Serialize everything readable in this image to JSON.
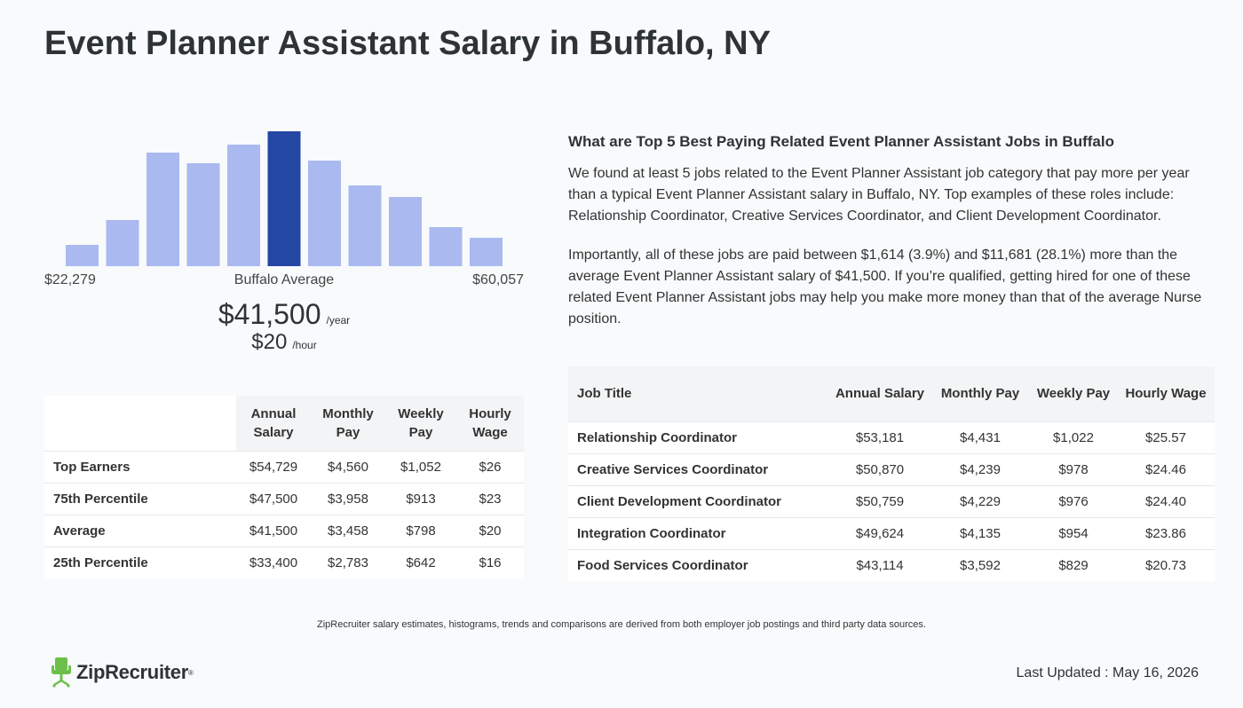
{
  "page_title": "Event Planner Assistant Salary in Buffalo, NY",
  "histogram": {
    "min_label": "$22,279",
    "max_label": "$60,057",
    "center_label": "Buffalo Average",
    "bar_color": "#aab9f0",
    "highlight_color": "#2447a4",
    "bar_heights": [
      0.16,
      0.34,
      0.84,
      0.76,
      0.9,
      1.0,
      0.78,
      0.6,
      0.51,
      0.29,
      0.21
    ],
    "highlight_index": 5
  },
  "average": {
    "annual": "$41,500",
    "annual_unit": "/year",
    "hourly": "$20",
    "hourly_unit": "/hour"
  },
  "percentile_table": {
    "headers": [
      "",
      "Annual Salary",
      "Monthly Pay",
      "Weekly Pay",
      "Hourly Wage"
    ],
    "rows": [
      [
        "Top Earners",
        "$54,729",
        "$4,560",
        "$1,052",
        "$26"
      ],
      [
        "75th Percentile",
        "$47,500",
        "$3,958",
        "$913",
        "$23"
      ],
      [
        "Average",
        "$41,500",
        "$3,458",
        "$798",
        "$20"
      ],
      [
        "25th Percentile",
        "$33,400",
        "$2,783",
        "$642",
        "$16"
      ]
    ]
  },
  "related": {
    "heading": "What are Top 5 Best Paying Related Event Planner Assistant Jobs in Buffalo",
    "paragraph1": "We found at least 5 jobs related to the Event Planner Assistant job category that pay more per year than a typical Event Planner Assistant salary in Buffalo, NY. Top examples of these roles include: Relationship Coordinator, Creative Services Coordinator, and Client Development Coordinator.",
    "paragraph2": "Importantly, all of these jobs are paid between $1,614 (3.9%) and $11,681 (28.1%) more than the average Event Planner Assistant salary of $41,500. If you’re qualified, getting hired for one of these related Event Planner Assistant jobs may help you make more money than that of the average Nurse position."
  },
  "jobs_table": {
    "headers": [
      "Job Title",
      "Annual Salary",
      "Monthly Pay",
      "Weekly Pay",
      "Hourly Wage"
    ],
    "rows": [
      [
        "Relationship Coordinator",
        "$53,181",
        "$4,431",
        "$1,022",
        "$25.57"
      ],
      [
        "Creative Services Coordinator",
        "$50,870",
        "$4,239",
        "$978",
        "$24.46"
      ],
      [
        "Client Development Coordinator",
        "$50,759",
        "$4,229",
        "$976",
        "$24.40"
      ],
      [
        "Integration Coordinator",
        "$49,624",
        "$4,135",
        "$954",
        "$23.86"
      ],
      [
        "Food Services Coordinator",
        "$43,114",
        "$3,592",
        "$829",
        "$20.73"
      ]
    ]
  },
  "footnote": "ZipRecruiter salary estimates, histograms, trends and comparisons are derived from both employer job postings and third party data sources.",
  "logo": {
    "text": "ZipRecruiter",
    "icon": "chair-icon",
    "color": "#6cc04a"
  },
  "last_updated": "Last Updated : May 16, 2026"
}
